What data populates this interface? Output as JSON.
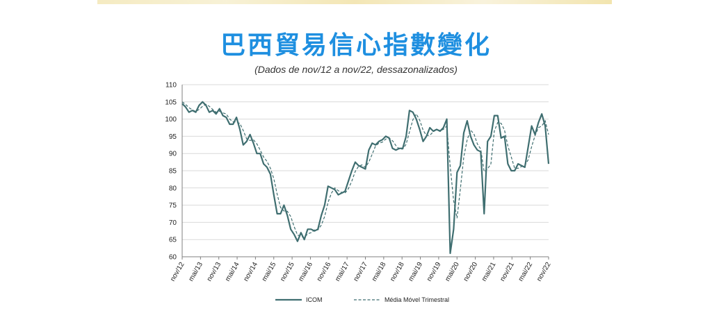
{
  "page": {
    "title": "巴西貿易信心指數變化",
    "subtitle": "(Dados de nov/12 a nov/22, dessazonalizados)"
  },
  "chart_data": {
    "type": "line",
    "title": "巴西貿易信心指數變化",
    "subtitle": "(Dados de nov/12 a nov/22, dessazonalizados)",
    "ylim": [
      60,
      110
    ],
    "yticks": [
      60,
      65,
      70,
      75,
      80,
      85,
      90,
      95,
      100,
      105,
      110
    ],
    "xticks": [
      "nov/12",
      "mai/13",
      "nov/13",
      "mai/14",
      "nov/14",
      "mai/15",
      "nov/15",
      "mai/16",
      "nov/16",
      "mai/17",
      "nov/17",
      "mai/18",
      "nov/18",
      "mai/19",
      "nov/19",
      "mai/20",
      "nov/20",
      "mai/21",
      "nov/21",
      "mai/22",
      "nov/22"
    ],
    "grid": true,
    "legend_position": "bottom",
    "colors": {
      "icom": "#3f6e70",
      "avg": "#3f6e70",
      "grid": "#d9d9d9",
      "axis": "#7f7f7f"
    },
    "series": [
      {
        "name": "ICOM",
        "style": "solid",
        "values": [
          104.5,
          103.5,
          102.0,
          102.5,
          102.0,
          104.0,
          105.0,
          104.0,
          102.0,
          102.5,
          101.5,
          103.0,
          101.0,
          100.5,
          98.5,
          98.5,
          100.5,
          97.0,
          92.5,
          93.5,
          95.5,
          93.0,
          90.0,
          90.0,
          87.0,
          86.0,
          84.0,
          78.0,
          72.5,
          72.5,
          75.0,
          72.0,
          68.0,
          66.5,
          64.5,
          67.0,
          65.0,
          68.0,
          68.0,
          67.5,
          68.0,
          72.0,
          75.0,
          80.5,
          80.0,
          79.5,
          78.0,
          78.5,
          79.0,
          82.0,
          85.0,
          87.5,
          86.5,
          86.0,
          85.5,
          91.0,
          93.0,
          92.5,
          93.5,
          94.0,
          95.0,
          94.5,
          91.5,
          91.0,
          91.5,
          91.5,
          95.0,
          102.5,
          102.0,
          100.0,
          97.0,
          93.5,
          95.0,
          97.5,
          96.5,
          97.0,
          96.5,
          97.5,
          100.0,
          61.0,
          68.0,
          84.5,
          86.5,
          96.0,
          99.5,
          95.0,
          92.5,
          91.0,
          90.5,
          72.5,
          93.5,
          95.0,
          101.0,
          101.0,
          94.5,
          95.0,
          87.0,
          85.0,
          85.0,
          87.0,
          86.5,
          86.0,
          92.0,
          98.0,
          95.5,
          99.0,
          101.5,
          98.0,
          87.0
        ]
      },
      {
        "name": "Média Móvel Trimestral",
        "style": "dashed",
        "values": [
          105.0,
          104.3,
          103.3,
          102.7,
          102.2,
          102.8,
          103.7,
          104.3,
          103.7,
          102.8,
          102.0,
          102.3,
          101.8,
          101.5,
          100.0,
          99.2,
          99.2,
          98.7,
          96.7,
          94.3,
          93.8,
          94.0,
          92.8,
          91.0,
          89.0,
          87.7,
          85.7,
          82.7,
          78.2,
          74.3,
          73.3,
          73.2,
          71.7,
          68.8,
          66.3,
          66.0,
          65.5,
          66.7,
          67.0,
          67.8,
          67.8,
          69.2,
          71.7,
          75.8,
          78.5,
          80.0,
          79.2,
          78.7,
          78.5,
          79.8,
          82.0,
          84.8,
          86.3,
          86.7,
          86.0,
          87.5,
          89.8,
          92.2,
          93.0,
          93.3,
          94.2,
          94.5,
          93.7,
          92.3,
          91.3,
          91.3,
          92.7,
          96.3,
          99.8,
          101.5,
          99.7,
          96.8,
          95.2,
          95.3,
          96.3,
          97.0,
          96.7,
          97.0,
          98.0,
          86.2,
          76.3,
          71.2,
          79.7,
          89.0,
          94.0,
          96.8,
          95.7,
          92.8,
          91.3,
          84.7,
          85.5,
          87.0,
          96.5,
          99.0,
          98.8,
          96.8,
          92.2,
          89.0,
          85.7,
          85.7,
          86.2,
          86.5,
          88.2,
          92.0,
          95.2,
          97.5,
          98.0,
          99.5,
          95.5
        ]
      }
    ]
  }
}
